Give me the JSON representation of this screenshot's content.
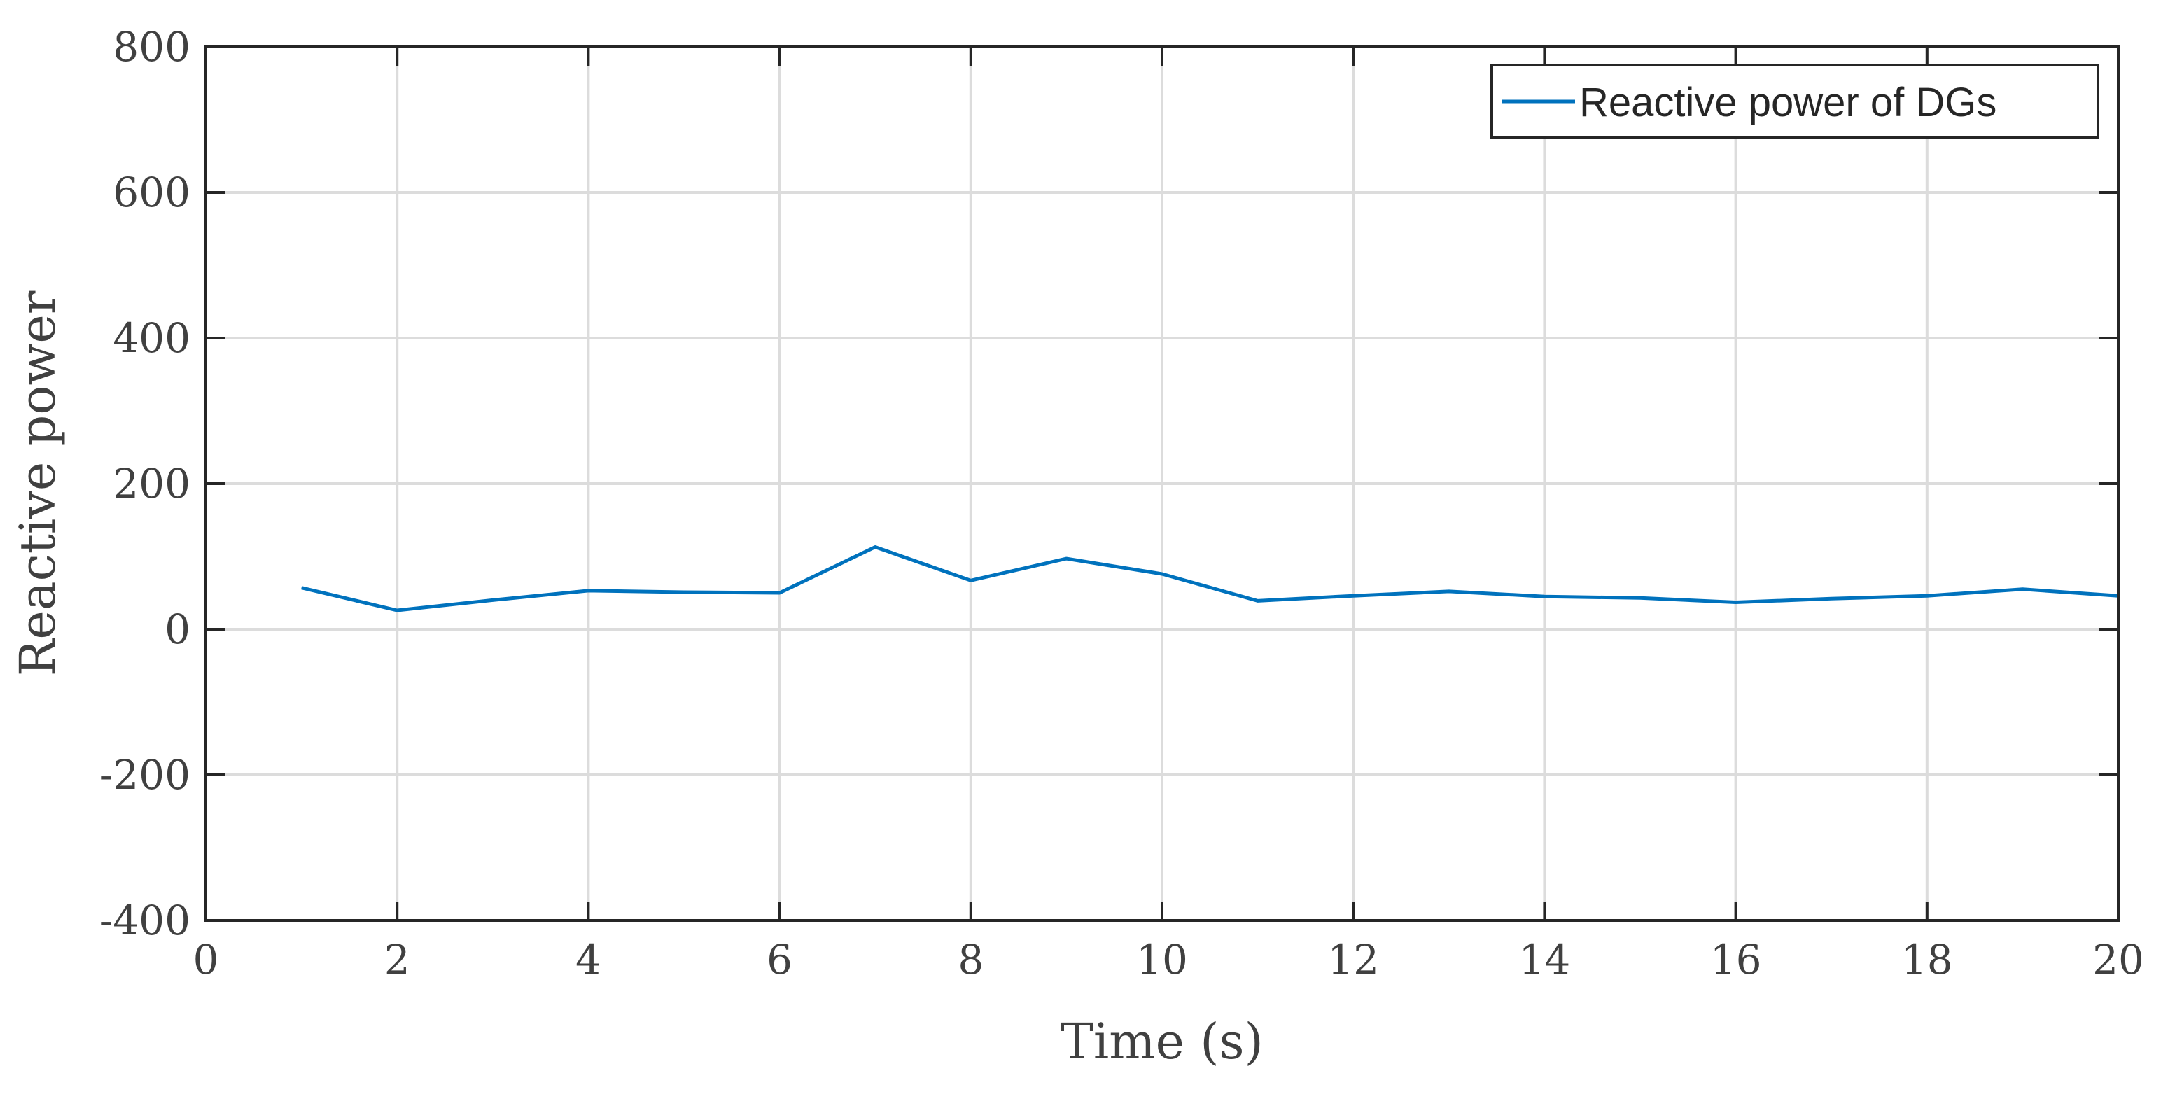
{
  "chart_data": {
    "type": "line",
    "xlabel": "Time (s)",
    "ylabel": "Reactive power",
    "xlim": [
      0,
      20
    ],
    "ylim": [
      -400,
      800
    ],
    "xticks": [
      0,
      2,
      4,
      6,
      8,
      10,
      12,
      14,
      16,
      18,
      20
    ],
    "yticks": [
      -400,
      -200,
      0,
      200,
      400,
      600,
      800
    ],
    "grid": true,
    "legend_position": "top-right",
    "series": [
      {
        "name": "Reactive power of DGs",
        "color": "#0072BD",
        "x": [
          1,
          2,
          3,
          4,
          5,
          6,
          7,
          8,
          9,
          10,
          11,
          12,
          13,
          14,
          15,
          16,
          17,
          18,
          19,
          20
        ],
        "y": [
          57,
          26,
          40,
          53,
          51,
          50,
          113,
          67,
          97,
          76,
          39,
          46,
          52,
          45,
          43,
          37,
          42,
          46,
          55,
          46
        ]
      }
    ]
  }
}
